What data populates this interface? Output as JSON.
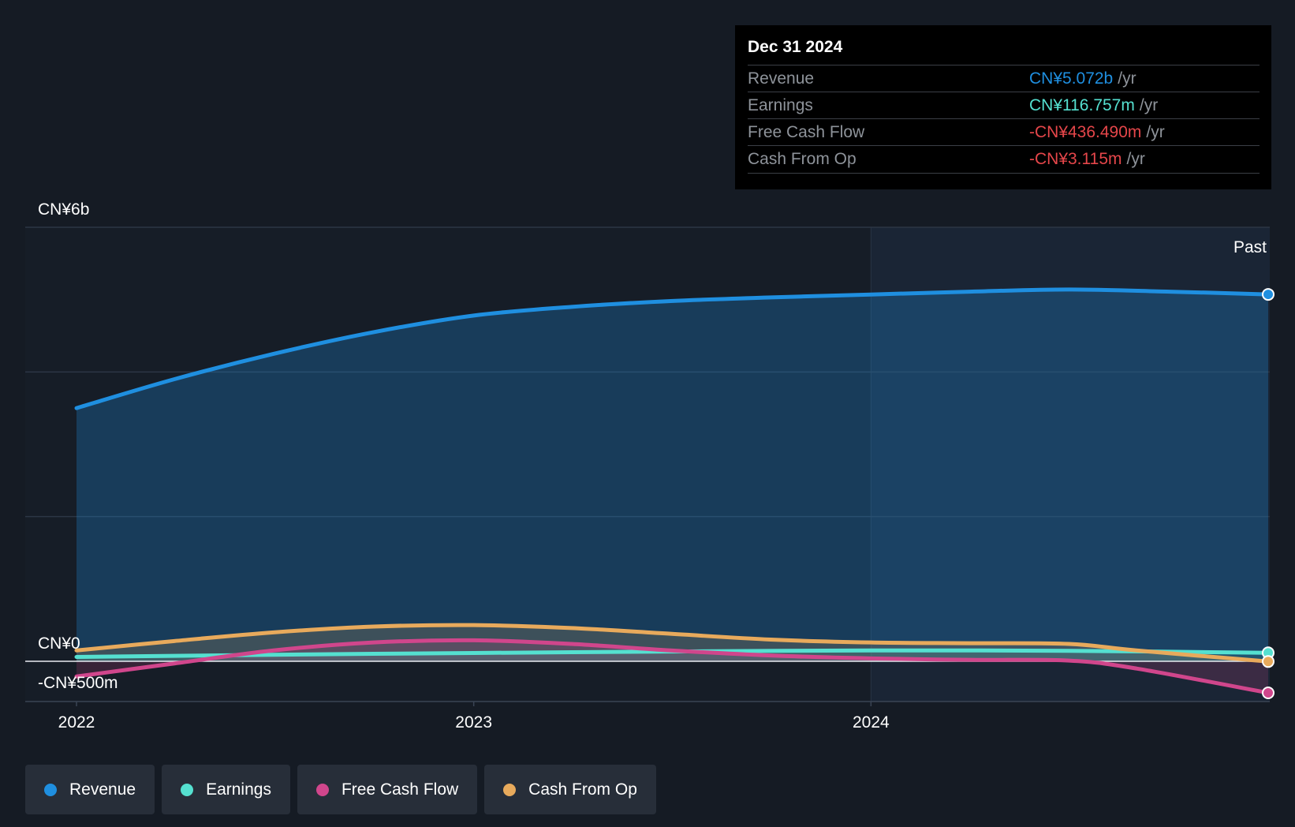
{
  "chart_data": {
    "type": "area",
    "x_ticks": [
      "2022",
      "2023",
      "2024"
    ],
    "y_axis": {
      "top_label": "CN¥6b",
      "zero_label": "CN¥0",
      "bottom_label": "-CN¥500m",
      "ylim": [
        -500,
        6000
      ],
      "unit": "CN¥ millions"
    },
    "past_label": "Past",
    "grid": true,
    "legend_position": "bottom-left",
    "series": [
      {
        "name": "Revenue",
        "color": "#1f8fe0",
        "points": [
          [
            "2022-01-01",
            3500
          ],
          [
            "2022-04-01",
            3900
          ],
          [
            "2022-07-01",
            4250
          ],
          [
            "2022-10-01",
            4550
          ],
          [
            "2023-01-01",
            4780
          ],
          [
            "2023-04-01",
            4900
          ],
          [
            "2023-07-01",
            4980
          ],
          [
            "2023-10-01",
            5030
          ],
          [
            "2024-01-01",
            5070
          ],
          [
            "2024-04-01",
            5110
          ],
          [
            "2024-07-01",
            5140
          ],
          [
            "2024-10-01",
            5110
          ],
          [
            "2024-12-31",
            5072
          ]
        ]
      },
      {
        "name": "Earnings",
        "color": "#55e0d0",
        "points": [
          [
            "2022-01-01",
            60
          ],
          [
            "2022-07-01",
            90
          ],
          [
            "2023-01-01",
            115
          ],
          [
            "2023-07-01",
            135
          ],
          [
            "2024-01-01",
            150
          ],
          [
            "2024-07-01",
            145
          ],
          [
            "2024-12-31",
            116.757
          ]
        ]
      },
      {
        "name": "Free Cash Flow",
        "color": "#d0468c",
        "points": [
          [
            "2022-01-01",
            -210
          ],
          [
            "2022-04-01",
            -30
          ],
          [
            "2022-07-01",
            150
          ],
          [
            "2022-10-01",
            260
          ],
          [
            "2023-01-01",
            290
          ],
          [
            "2023-04-01",
            240
          ],
          [
            "2023-07-01",
            150
          ],
          [
            "2023-10-01",
            80
          ],
          [
            "2024-01-01",
            40
          ],
          [
            "2024-04-01",
            20
          ],
          [
            "2024-07-01",
            10
          ],
          [
            "2024-09-01",
            -100
          ],
          [
            "2024-12-31",
            -436.49
          ]
        ]
      },
      {
        "name": "Cash From Op",
        "color": "#e8aa5c",
        "points": [
          [
            "2022-01-01",
            150
          ],
          [
            "2022-04-01",
            280
          ],
          [
            "2022-07-01",
            400
          ],
          [
            "2022-10-01",
            480
          ],
          [
            "2023-01-01",
            500
          ],
          [
            "2023-04-01",
            460
          ],
          [
            "2023-07-01",
            380
          ],
          [
            "2023-10-01",
            300
          ],
          [
            "2024-01-01",
            260
          ],
          [
            "2024-04-01",
            250
          ],
          [
            "2024-07-01",
            240
          ],
          [
            "2024-09-01",
            150
          ],
          [
            "2024-12-31",
            -3.115
          ]
        ]
      }
    ]
  },
  "tooltip": {
    "date": "Dec 31 2024",
    "rows": [
      {
        "label": "Revenue",
        "value": "CN¥5.072b",
        "unit": "/yr",
        "color": "#1f8fe0"
      },
      {
        "label": "Earnings",
        "value": "CN¥116.757m",
        "unit": "/yr",
        "color": "#55e0d0"
      },
      {
        "label": "Free Cash Flow",
        "value": "-CN¥436.490m",
        "unit": "/yr",
        "color": "#e5464a"
      },
      {
        "label": "Cash From Op",
        "value": "-CN¥3.115m",
        "unit": "/yr",
        "color": "#e5464a"
      }
    ]
  },
  "legend": [
    {
      "label": "Revenue",
      "color": "#1f8fe0"
    },
    {
      "label": "Earnings",
      "color": "#55e0d0"
    },
    {
      "label": "Free Cash Flow",
      "color": "#d0468c"
    },
    {
      "label": "Cash From Op",
      "color": "#e8aa5c"
    }
  ]
}
